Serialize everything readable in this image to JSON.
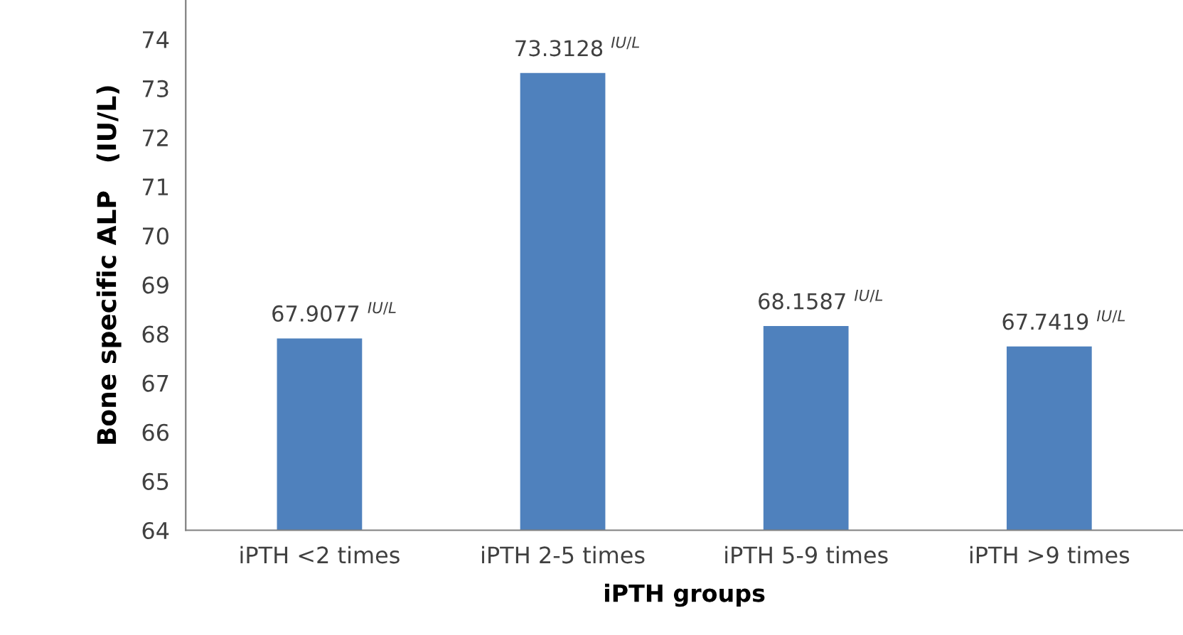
{
  "chart_data": {
    "type": "bar",
    "categories": [
      "iPTH <2 times",
      "iPTH 2-5 times",
      "iPTH 5-9 times",
      "iPTH >9 times"
    ],
    "values": [
      67.9077,
      73.3128,
      68.1587,
      67.7419
    ],
    "value_labels": [
      "67.9077 $^{IU/L}$",
      "73.3128 $^{IU/L}$",
      "68.1587 $^{IU/L}$",
      "67.7419 $^{IU/L}$"
    ],
    "color": "#4f81bd",
    "xlabel": "iPTH groups",
    "ylabel": "Bone specific ALP   (IU/L)",
    "ylim": [
      64,
      74.8
    ],
    "yticks": [
      64,
      65,
      66,
      67,
      68,
      69,
      70,
      71,
      72,
      73,
      74
    ],
    "grid": false,
    "legend": false
  }
}
